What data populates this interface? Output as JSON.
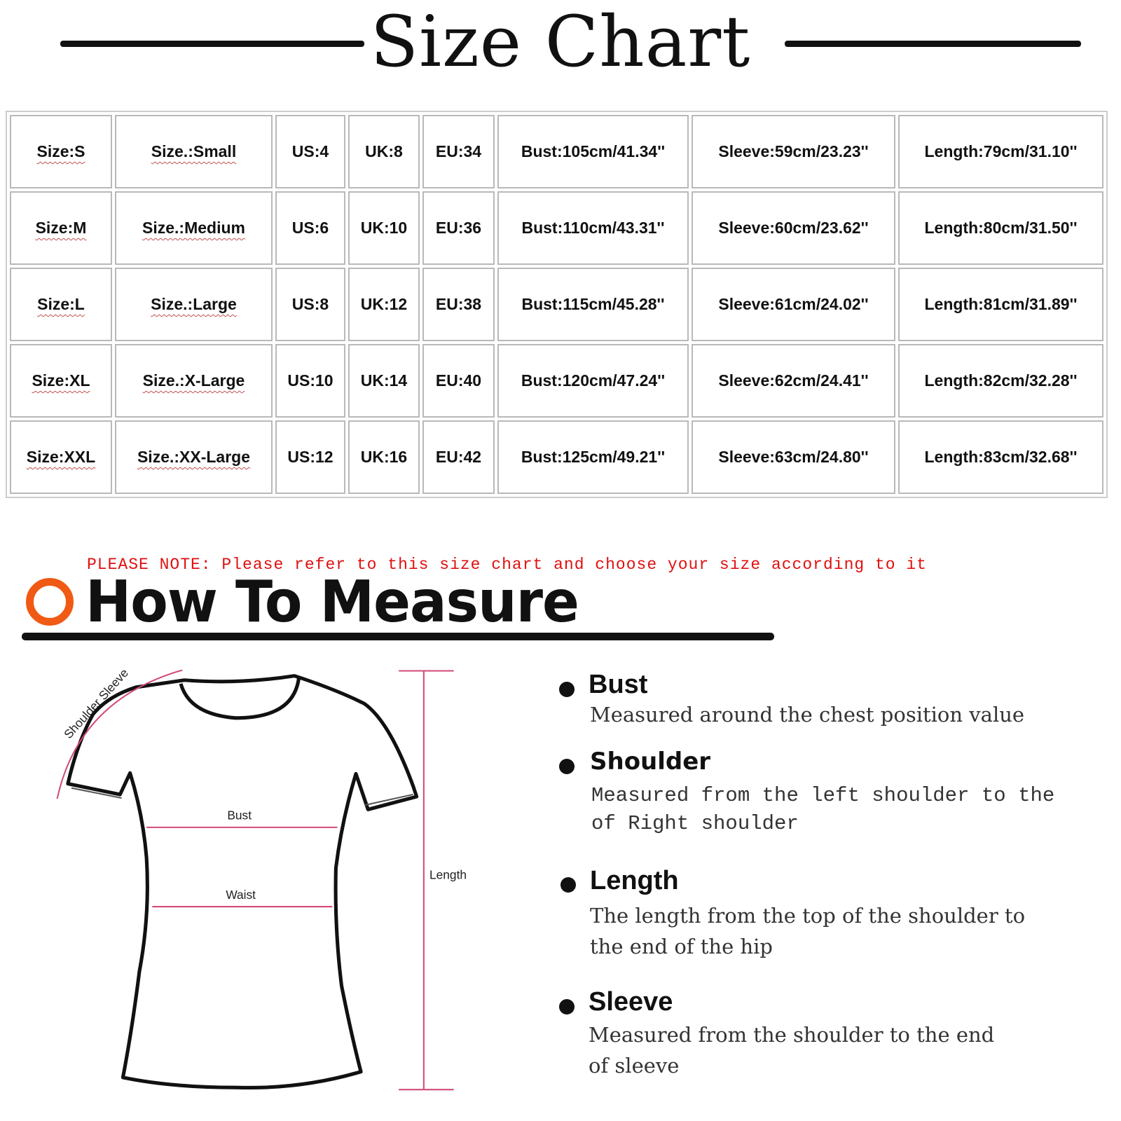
{
  "title": "Size Chart",
  "table": {
    "rows": [
      [
        "Size:S",
        "Size.:Small",
        "US:4",
        "UK:8",
        "EU:34",
        "Bust:105cm/41.34''",
        "Sleeve:59cm/23.23''",
        "Length:79cm/31.10''"
      ],
      [
        "Size:M",
        "Size.:Medium",
        "US:6",
        "UK:10",
        "EU:36",
        "Bust:110cm/43.31''",
        "Sleeve:60cm/23.62''",
        "Length:80cm/31.50''"
      ],
      [
        "Size:L",
        "Size.:Large",
        "US:8",
        "UK:12",
        "EU:38",
        "Bust:115cm/45.28''",
        "Sleeve:61cm/24.02''",
        "Length:81cm/31.89''"
      ],
      [
        "Size:XL",
        "Size.:X-Large",
        "US:10",
        "UK:14",
        "EU:40",
        "Bust:120cm/47.24''",
        "Sleeve:62cm/24.41''",
        "Length:82cm/32.28''"
      ],
      [
        "Size:XXL",
        "Size.:XX-Large",
        "US:12",
        "UK:16",
        "EU:42",
        "Bust:125cm/49.21''",
        "Sleeve:63cm/24.80''",
        "Length:83cm/32.68''"
      ]
    ]
  },
  "note": "PLEASE NOTE: Please refer to this size chart and choose your size according to it",
  "measure": {
    "title": "How To Measure",
    "accent_color": "#f05a14",
    "diagram": {
      "shoulder_sleeve": "Shoulder Sleeve",
      "bust": "Bust",
      "waist": "Waist",
      "length": "Length"
    },
    "items": [
      {
        "heading": "Bust",
        "desc": [
          "Measured around the chest position value"
        ]
      },
      {
        "heading": "Shoulder",
        "desc": [
          "Measured from the left shoulder to the",
          "of Right shoulder"
        ]
      },
      {
        "heading": "Length",
        "desc": [
          "The length from the top of the shoulder to",
          "the end of the hip"
        ]
      },
      {
        "heading": "Sleeve",
        "desc": [
          "Measured from the shoulder to the end",
          "of sleeve"
        ]
      }
    ]
  }
}
